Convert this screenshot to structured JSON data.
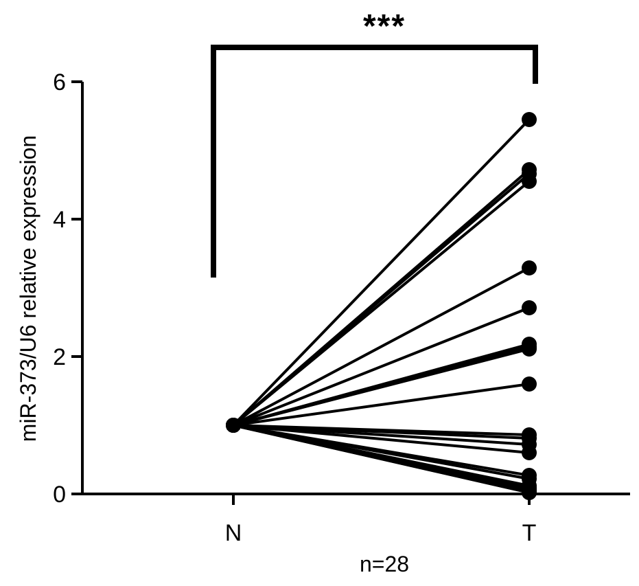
{
  "chart_data": {
    "type": "scatter",
    "categories": [
      "N",
      "T"
    ],
    "ylabel": "miR-373/U6 relative expression",
    "xlabel": "n=28",
    "yticks": [
      0,
      2,
      4,
      6
    ],
    "ylim": [
      0,
      6
    ],
    "significance": "***",
    "pairs": [
      {
        "N": 1.0,
        "T": 5.45
      },
      {
        "N": 1.0,
        "T": 4.72
      },
      {
        "N": 1.0,
        "T": 4.66
      },
      {
        "N": 1.0,
        "T": 4.55
      },
      {
        "N": 1.0,
        "T": 3.29
      },
      {
        "N": 1.0,
        "T": 2.71
      },
      {
        "N": 1.0,
        "T": 2.18
      },
      {
        "N": 1.0,
        "T": 2.14
      },
      {
        "N": 1.0,
        "T": 2.11
      },
      {
        "N": 1.0,
        "T": 1.6
      },
      {
        "N": 1.0,
        "T": 0.86
      },
      {
        "N": 1.0,
        "T": 0.81
      },
      {
        "N": 1.0,
        "T": 0.72
      },
      {
        "N": 1.0,
        "T": 0.6
      },
      {
        "N": 1.0,
        "T": 0.27
      },
      {
        "N": 1.0,
        "T": 0.22
      },
      {
        "N": 1.0,
        "T": 0.12
      },
      {
        "N": 1.0,
        "T": 0.09
      },
      {
        "N": 1.0,
        "T": 0.07
      },
      {
        "N": 1.0,
        "T": 0.06
      },
      {
        "N": 1.0,
        "T": 0.05
      },
      {
        "N": 1.0,
        "T": 0.05
      },
      {
        "N": 1.0,
        "T": 0.04
      },
      {
        "N": 1.0,
        "T": 0.04
      },
      {
        "N": 1.0,
        "T": 0.03
      },
      {
        "N": 1.0,
        "T": 0.03
      },
      {
        "N": 1.0,
        "T": 0.02
      },
      {
        "N": 1.0,
        "T": 0.02
      }
    ],
    "colors": {
      "line": "#000000",
      "marker": "#000000",
      "axis": "#000000"
    }
  }
}
